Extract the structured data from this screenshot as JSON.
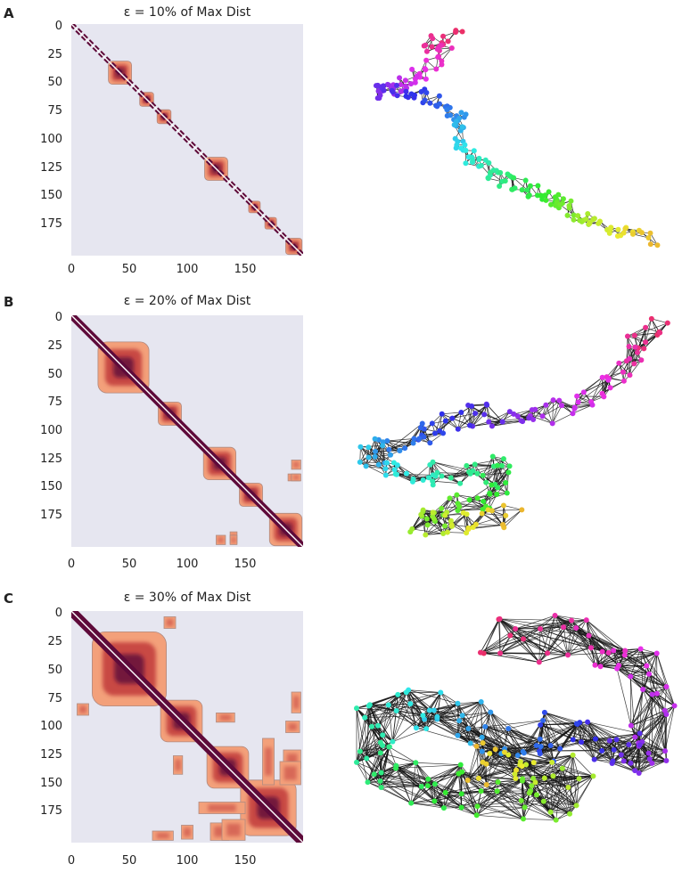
{
  "figure": {
    "panels": [
      {
        "letter": "A",
        "title": "ε = 10% of Max Dist",
        "y_ticks": [
          "0",
          "25",
          "50",
          "75",
          "100",
          "125",
          "150",
          "175"
        ],
        "x_ticks": [
          "0",
          "50",
          "100",
          "150"
        ]
      },
      {
        "letter": "B",
        "title": "ε = 20% of Max Dist",
        "y_ticks": [
          "0",
          "25",
          "50",
          "75",
          "100",
          "125",
          "150",
          "175"
        ],
        "x_ticks": [
          "0",
          "50",
          "100",
          "150"
        ]
      },
      {
        "letter": "C",
        "title": "ε = 30% of Max Dist",
        "y_ticks": [
          "0",
          "25",
          "50",
          "75",
          "100",
          "125",
          "150",
          "175"
        ],
        "x_ticks": [
          "0",
          "50",
          "100",
          "150"
        ]
      }
    ]
  },
  "chart_data": [
    {
      "type": "heatmap",
      "title": "ε = 10% of Max Dist",
      "xlim": [
        0,
        200
      ],
      "ylim": [
        0,
        200
      ],
      "x_ticks": [
        0,
        50,
        100,
        150
      ],
      "y_ticks": [
        0,
        25,
        50,
        75,
        100,
        125,
        150,
        175
      ],
      "background_color": "#e6e6f0",
      "colormap": [
        "#f3a07a",
        "#c13a3a",
        "#5e0a3a",
        "#ffffff"
      ],
      "blocks": [
        {
          "center": 42,
          "half": 10
        },
        {
          "center": 65,
          "half": 6
        },
        {
          "center": 80,
          "half": 6
        },
        {
          "center": 125,
          "half": 10
        },
        {
          "center": 158,
          "half": 5
        },
        {
          "center": 172,
          "half": 5
        },
        {
          "center": 192,
          "half": 7
        }
      ],
      "diagonal_band": 2
    },
    {
      "type": "heatmap",
      "title": "ε = 20% of Max Dist",
      "xlim": [
        0,
        200
      ],
      "ylim": [
        0,
        200
      ],
      "x_ticks": [
        0,
        50,
        100,
        150
      ],
      "y_ticks": [
        0,
        25,
        50,
        75,
        100,
        125,
        150,
        175
      ],
      "background_color": "#e6e6f0",
      "colormap": [
        "#f3a07a",
        "#c13a3a",
        "#5e0a3a",
        "#ffffff"
      ],
      "blocks": [
        {
          "center": 45,
          "half": 22
        },
        {
          "center": 85,
          "half": 10
        },
        {
          "center": 128,
          "half": 14
        },
        {
          "center": 155,
          "half": 10
        },
        {
          "center": 185,
          "half": 14
        }
      ],
      "off_blocks": [
        {
          "x": 137,
          "y": 187,
          "w": 6,
          "h": 10
        },
        {
          "x": 190,
          "y": 125,
          "w": 8,
          "h": 8
        },
        {
          "x": 190,
          "y": 137,
          "w": 8,
          "h": 6
        }
      ],
      "diagonal_band": 4
    },
    {
      "type": "heatmap",
      "title": "ε = 30% of Max Dist",
      "xlim": [
        0,
        200
      ],
      "ylim": [
        0,
        200
      ],
      "x_ticks": [
        0,
        50,
        100,
        150
      ],
      "y_ticks": [
        0,
        25,
        50,
        75,
        100,
        125,
        150,
        175
      ],
      "background_color": "#e6e6f0",
      "colormap": [
        "#f3a07a",
        "#c13a3a",
        "#5e0a3a",
        "#ffffff"
      ],
      "blocks": [
        {
          "center": 50,
          "half": 32
        },
        {
          "center": 95,
          "half": 18
        },
        {
          "center": 135,
          "half": 18
        },
        {
          "center": 170,
          "half": 24
        }
      ],
      "off_blocks": [
        {
          "x": 125,
          "y": 88,
          "w": 16,
          "h": 8
        },
        {
          "x": 183,
          "y": 120,
          "w": 15,
          "h": 16
        },
        {
          "x": 165,
          "y": 110,
          "w": 10,
          "h": 40
        },
        {
          "x": 5,
          "y": 80,
          "w": 10,
          "h": 10
        },
        {
          "x": 95,
          "y": 185,
          "w": 10,
          "h": 12
        },
        {
          "x": 130,
          "y": 180,
          "w": 20,
          "h": 18
        },
        {
          "x": 190,
          "y": 70,
          "w": 8,
          "h": 18
        }
      ],
      "diagonal_band": 6
    }
  ],
  "graphs": [
    {
      "path": [
        [
          520,
          40
        ],
        [
          480,
          48
        ],
        [
          500,
          60
        ],
        [
          475,
          78
        ],
        [
          455,
          92
        ],
        [
          440,
          100
        ],
        [
          415,
          103
        ],
        [
          450,
          100
        ],
        [
          475,
          110
        ],
        [
          500,
          120
        ],
        [
          520,
          130
        ],
        [
          515,
          150
        ],
        [
          525,
          175
        ],
        [
          540,
          185
        ],
        [
          555,
          200
        ],
        [
          575,
          205
        ],
        [
          600,
          215
        ],
        [
          620,
          225
        ],
        [
          635,
          232
        ],
        [
          650,
          245
        ],
        [
          670,
          255
        ],
        [
          700,
          262
        ],
        [
          735,
          270
        ]
      ],
      "spread": 8,
      "point_count": 200,
      "edge_k": 2
    },
    {
      "path": [
        [
          740,
          370
        ],
        [
          720,
          385
        ],
        [
          700,
          410
        ],
        [
          670,
          440
        ],
        [
          640,
          460
        ],
        [
          600,
          470
        ],
        [
          560,
          468
        ],
        [
          520,
          470
        ],
        [
          490,
          480
        ],
        [
          460,
          490
        ],
        [
          430,
          500
        ],
        [
          410,
          515
        ],
        [
          440,
          525
        ],
        [
          480,
          530
        ],
        [
          520,
          530
        ],
        [
          555,
          525
        ],
        [
          560,
          545
        ],
        [
          530,
          565
        ],
        [
          490,
          575
        ],
        [
          470,
          585
        ],
        [
          510,
          590
        ],
        [
          545,
          585
        ],
        [
          570,
          575
        ]
      ],
      "spread": 16,
      "point_count": 200,
      "edge_k": 4
    },
    {
      "path": [
        [
          540,
          710
        ],
        [
          600,
          720
        ],
        [
          660,
          715
        ],
        [
          710,
          740
        ],
        [
          730,
          780
        ],
        [
          740,
          830
        ],
        [
          720,
          860
        ],
        [
          690,
          830
        ],
        [
          640,
          820
        ],
        [
          600,
          830
        ],
        [
          560,
          830
        ],
        [
          520,
          815
        ],
        [
          480,
          800
        ],
        [
          440,
          800
        ],
        [
          410,
          820
        ],
        [
          420,
          860
        ],
        [
          460,
          880
        ],
        [
          510,
          885
        ],
        [
          560,
          895
        ],
        [
          610,
          900
        ],
        [
          640,
          880
        ],
        [
          600,
          860
        ],
        [
          560,
          850
        ],
        [
          520,
          860
        ]
      ],
      "spread": 26,
      "point_count": 200,
      "edge_k": 8
    }
  ]
}
